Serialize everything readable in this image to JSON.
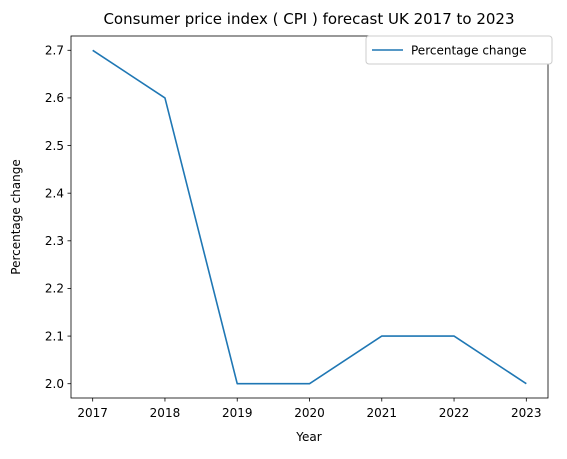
{
  "colors": {
    "series_line": "#1f77b4",
    "axes": "#000000",
    "legend_border": "#cccccc",
    "background": "#ffffff"
  },
  "chart_data": {
    "type": "line",
    "title": "Consumer price index ( CPI ) forecast UK 2017 to 2023",
    "xlabel": "Year",
    "ylabel": "Percentage change",
    "x": [
      2017,
      2018,
      2019,
      2020,
      2021,
      2022,
      2023
    ],
    "series": [
      {
        "name": "Percentage change",
        "values": [
          2.7,
          2.6,
          2.0,
          2.0,
          2.1,
          2.1,
          2.0
        ]
      }
    ],
    "xlim": [
      2016.7,
      2023.3
    ],
    "ylim": [
      1.97,
      2.73
    ],
    "x_ticks": [
      "2017",
      "2018",
      "2019",
      "2020",
      "2021",
      "2022",
      "2023"
    ],
    "y_ticks": [
      "2.0",
      "2.1",
      "2.2",
      "2.3",
      "2.4",
      "2.5",
      "2.6",
      "2.7"
    ],
    "grid": false,
    "legend_position": "top-right"
  }
}
